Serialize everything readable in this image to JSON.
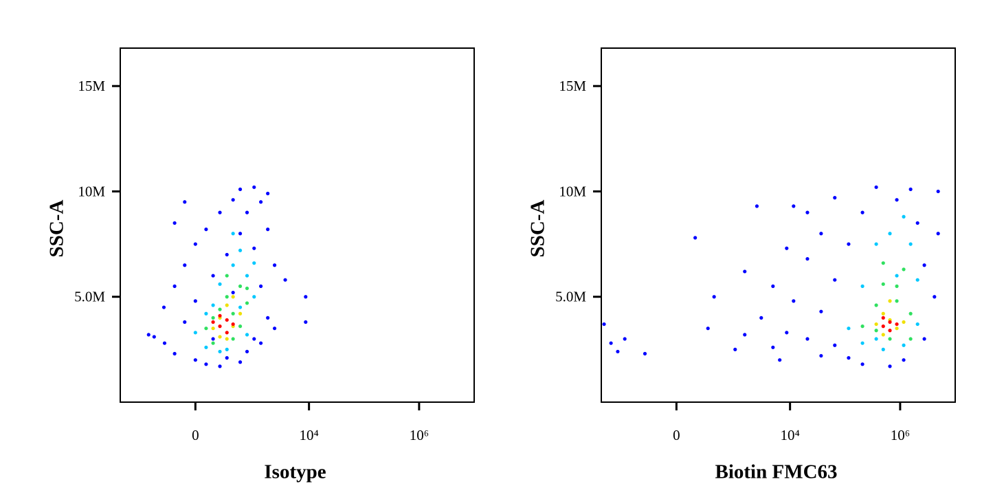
{
  "chart_data": [
    {
      "type": "scatter",
      "xlabel": "Isotype",
      "ylabel": "SSC-A",
      "xscale": "asinh",
      "xscale_cofactor": 173,
      "xlim": [
        -2000,
        10000000
      ],
      "xticks": [
        0,
        {
          "value": 10000,
          "label": "10⁴"
        },
        {
          "value": 1000000,
          "label": "10⁶"
        }
      ],
      "ylim": [
        0,
        16800000
      ],
      "yticks": [
        {
          "value": 5000000,
          "label": "5.0M"
        },
        {
          "value": 10000000,
          "label": "10M"
        },
        {
          "value": 15000000,
          "label": "15M"
        }
      ],
      "series": [
        {
          "color": "#0000ff",
          "x": [
            -470,
            -300,
            -290,
            -170,
            -170,
            -80,
            -80,
            0,
            0,
            0,
            80,
            80,
            140,
            210,
            210,
            300,
            300,
            400,
            400,
            550,
            550,
            550,
            740,
            740,
            1000,
            1000,
            1000,
            1330,
            1330,
            1330,
            1780,
            1780,
            2370,
            2370,
            3700,
            8700,
            8700,
            -600,
            140,
            -80,
            -170,
            1780
          ],
          "y": [
            3100000.0,
            4500000.0,
            2800000.0,
            5500000.0,
            2300000.0,
            6500000.0,
            3800000.0,
            7500000.0,
            2000000.0,
            4800000.0,
            8200000.0,
            1800000.0,
            6000000.0,
            9000000.0,
            1700000.0,
            7000000.0,
            2100000.0,
            9600000.0,
            5200000.0,
            10100000.0,
            1900000.0,
            8000000.0,
            9000000.0,
            2400000.0,
            10200000.0,
            7300000.0,
            3000000.0,
            9500000.0,
            5500000.0,
            2800000.0,
            8200000.0,
            4000000.0,
            6500000.0,
            3500000.0,
            5800000.0,
            5000000.0,
            3800000.0,
            3200000.0,
            3000000.0,
            9500000.0,
            8500000.0,
            9900000.0
          ]
        },
        {
          "color": "#00c8ff",
          "x": [
            0,
            80,
            140,
            210,
            300,
            400,
            550,
            550,
            740,
            740,
            1000,
            80,
            210,
            400,
            1000
          ],
          "y": [
            3300000.0,
            2600000.0,
            4600000.0,
            5600000.0,
            2500000.0,
            6500000.0,
            7200000.0,
            4500000.0,
            6000000.0,
            3200000.0,
            5000000.0,
            4200000.0,
            2400000.0,
            8000000.0,
            6600000.0
          ]
        },
        {
          "color": "#30e060",
          "x": [
            80,
            140,
            210,
            300,
            400,
            550,
            550,
            740,
            300,
            140,
            400,
            740
          ],
          "y": [
            3500000.0,
            2800000.0,
            4400000.0,
            5000000.0,
            3000000.0,
            5500000.0,
            3600000.0,
            4700000.0,
            6000000.0,
            4000000.0,
            4200000.0,
            5400000.0
          ]
        },
        {
          "color": "#f0e000",
          "x": [
            140,
            210,
            300,
            400,
            300,
            550,
            210,
            400
          ],
          "y": [
            3500000.0,
            4000000.0,
            4600000.0,
            3600000.0,
            3000000.0,
            4200000.0,
            3100000.0,
            5000000.0
          ]
        },
        {
          "color": "#ff0000",
          "x": [
            210,
            300,
            300,
            210,
            400,
            140
          ],
          "y": [
            3600000.0,
            3900000.0,
            3300000.0,
            4100000.0,
            3700000.0,
            3800000.0
          ]
        }
      ]
    },
    {
      "type": "scatter",
      "xlabel": "Biotin FMC63",
      "ylabel": "SSC-A",
      "xscale": "asinh",
      "xscale_cofactor": 173,
      "xlim": [
        -2000,
        10000000
      ],
      "xticks": [
        0,
        {
          "value": 10000,
          "label": "10⁴"
        },
        {
          "value": 1000000,
          "label": "10⁶"
        }
      ],
      "ylim": [
        0,
        16800000
      ],
      "yticks": [
        {
          "value": 5000000,
          "label": "5.0M"
        },
        {
          "value": 10000000,
          "label": "10M"
        },
        {
          "value": 15000000,
          "label": "15M"
        }
      ],
      "series": [
        {
          "color": "#0000ff",
          "x": [
            -1780,
            -1330,
            -740,
            -300,
            -1000,
            150,
            300,
            400,
            1000,
            1500,
            1500,
            3000,
            4900,
            4900,
            8700,
            8700,
            11600,
            11600,
            20700,
            20700,
            20700,
            36700,
            36700,
            36700,
            65000,
            65000,
            65000,
            116000,
            116000,
            207000,
            207000,
            368000,
            652000,
            870000,
            1550000,
            2070000,
            2750000,
            2750000,
            4200000,
            4900000,
            1160000,
            4900000,
            6500,
            2500
          ],
          "y": [
            3700000.0,
            2800000.0,
            3000000.0,
            2300000.0,
            2400000.0,
            7800000.0,
            3500000.0,
            5000000.0,
            2500000.0,
            3200000.0,
            6200000.0,
            4000000.0,
            2600000.0,
            5500000.0,
            3300000.0,
            7300000.0,
            4800000.0,
            9300000.0,
            3000000.0,
            6800000.0,
            9000000.0,
            4300000.0,
            8000000.0,
            2200000.0,
            5800000.0,
            9700000.0,
            2700000.0,
            7500000.0,
            2100000.0,
            9000000.0,
            1800000.0,
            10200000.0,
            1700000.0,
            9600000.0,
            10100000.0,
            8500000.0,
            6500000.0,
            3000000.0,
            5000000.0,
            8000000.0,
            2000000.0,
            10000000.0,
            2000000.0,
            9300000.0
          ]
        },
        {
          "color": "#00c8ff",
          "x": [
            116000,
            207000,
            368000,
            493000,
            652000,
            870000,
            1160000,
            1550000,
            2070000,
            2070000,
            368000,
            1160000,
            207000
          ],
          "y": [
            3500000.0,
            5500000.0,
            7500000.0,
            2500000.0,
            8000000.0,
            6000000.0,
            2700000.0,
            7500000.0,
            3700000.0,
            5800000.0,
            3000000.0,
            8800000.0,
            2800000.0
          ]
        },
        {
          "color": "#30e060",
          "x": [
            207000,
            368000,
            493000,
            652000,
            870000,
            1160000,
            1550000,
            1550000,
            493000,
            368000,
            870000
          ],
          "y": [
            3600000.0,
            4600000.0,
            5600000.0,
            3000000.0,
            4800000.0,
            6300000.0,
            4200000.0,
            3000000.0,
            6600000.0,
            3400000.0,
            5500000.0
          ]
        },
        {
          "color": "#f0e000",
          "x": [
            368000,
            493000,
            652000,
            870000,
            652000,
            1160000,
            493000
          ],
          "y": [
            3700000.0,
            4200000.0,
            3900000.0,
            3500000.0,
            4800000.0,
            3800000.0,
            3200000.0
          ]
        },
        {
          "color": "#ff0000",
          "x": [
            493000,
            652000,
            652000,
            870000,
            493000
          ],
          "y": [
            3600000.0,
            3400000.0,
            3800000.0,
            3700000.0,
            4000000.0
          ]
        }
      ]
    }
  ]
}
